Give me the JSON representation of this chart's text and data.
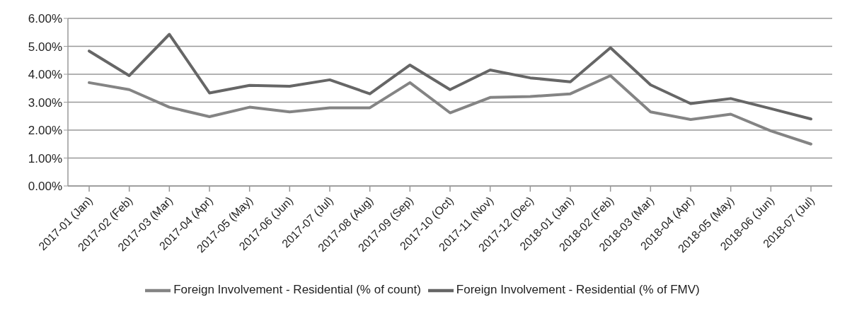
{
  "chart_data": {
    "type": "line",
    "categories": [
      "2017-01 (Jan)",
      "2017-02 (Feb)",
      "2017-03 (Mar)",
      "2017-04 (Apr)",
      "2017-05 (May)",
      "2017-06 (Jun)",
      "2017-07 (Jul)",
      "2017-08 (Aug)",
      "2017-09 (Sep)",
      "2017-10 (Oct)",
      "2017-11 (Nov)",
      "2017-12 (Dec)",
      "2018-01 (Jan)",
      "2018-02 (Feb)",
      "2018-03 (Mar)",
      "2018-04 (Apr)",
      "2018-05 (May)",
      "2018-06 (Jun)",
      "2018-07 (Jul)"
    ],
    "series": [
      {
        "name": "Foreign Involvement - Residential (% of count)",
        "color": "#848484",
        "values": [
          3.7,
          3.45,
          2.82,
          2.48,
          2.82,
          2.65,
          2.8,
          2.8,
          3.7,
          2.62,
          3.17,
          3.2,
          3.3,
          3.95,
          2.65,
          2.38,
          2.57,
          1.97,
          1.5
        ]
      },
      {
        "name": "Foreign Involvement - Residential (% of FMV)",
        "color": "#666666",
        "values": [
          4.83,
          3.95,
          5.43,
          3.33,
          3.6,
          3.57,
          3.8,
          3.3,
          4.33,
          3.45,
          4.15,
          3.87,
          3.73,
          4.95,
          3.62,
          2.95,
          3.13,
          2.77,
          2.4
        ]
      }
    ],
    "ylim": [
      0,
      6
    ],
    "yticks": [
      {
        "value": 0,
        "label": "0.00%"
      },
      {
        "value": 1,
        "label": "1.00%"
      },
      {
        "value": 2,
        "label": "2.00%"
      },
      {
        "value": 3,
        "label": "3.00%"
      },
      {
        "value": 4,
        "label": "4.00%"
      },
      {
        "value": 5,
        "label": "5.00%"
      },
      {
        "value": 6,
        "label": "6.00%"
      }
    ],
    "grid": "y",
    "legend": "bottom",
    "marker": "none",
    "line_style": "solid"
  }
}
